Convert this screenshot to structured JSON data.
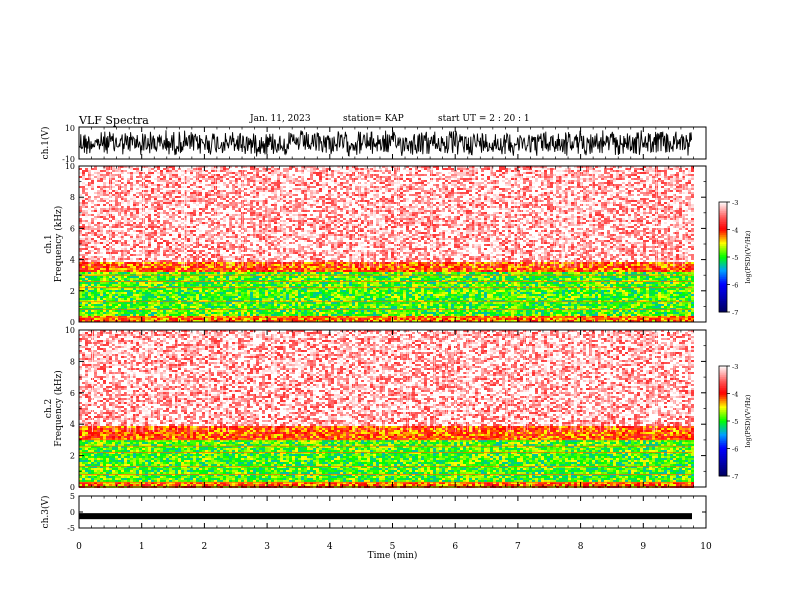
{
  "header": {
    "title": "VLF Spectra",
    "date": "Jan. 11, 2023",
    "station": "station= KAP",
    "start": "start  UT  =   2 : 20 : 1"
  },
  "chart_data": [
    {
      "type": "line",
      "panel": "ch1-waveform",
      "ylabel": "ch.1(V)",
      "ylim": [
        -10,
        10
      ],
      "yticks": [
        "10",
        "-10"
      ],
      "xlim": [
        0,
        10
      ],
      "description_values": {
        "amplitude_fill": "dense",
        "x_end": 9.8
      }
    },
    {
      "type": "heatmap",
      "panel": "ch1-spectrogram",
      "ylabel": "ch.1\nFrequency (kHz)",
      "ylim": [
        0,
        10
      ],
      "yticks": [
        "0",
        "2",
        "4",
        "6",
        "8",
        "10"
      ],
      "xlim": [
        0,
        9.8
      ],
      "bands": [
        {
          "from": 0,
          "to": 0.5,
          "level": -4.2
        },
        {
          "from": 0.5,
          "to": 3.3,
          "level": -4.9
        },
        {
          "from": 3.3,
          "to": 3.9,
          "level": -4.1
        },
        {
          "from": 3.9,
          "to": 10,
          "level": -3.2
        }
      ],
      "colorbar": {
        "label": "log(PSD)(V²/Hz)",
        "ticks": [
          "-3",
          "-4",
          "-5",
          "-6",
          "-7"
        ],
        "range": [
          -7,
          -3
        ]
      }
    },
    {
      "type": "heatmap",
      "panel": "ch2-spectrogram",
      "ylabel": "ch.2\nFrequency (kHz)",
      "ylim": [
        0,
        10
      ],
      "yticks": [
        "0",
        "2",
        "4",
        "6",
        "8",
        "10"
      ],
      "xlim": [
        0,
        9.8
      ],
      "bands": [
        {
          "from": 0,
          "to": 0.4,
          "level": -4.2
        },
        {
          "from": 0.4,
          "to": 3.0,
          "level": -4.9
        },
        {
          "from": 3.0,
          "to": 4.0,
          "level": -4.1
        },
        {
          "from": 4.0,
          "to": 10,
          "level": -3.2
        }
      ],
      "colorbar": {
        "label": "log(PSD)(V²/Hz)",
        "ticks": [
          "-3",
          "-4",
          "-5",
          "-6",
          "-7"
        ],
        "range": [
          -7,
          -3
        ]
      }
    },
    {
      "type": "line",
      "panel": "ch3-waveform",
      "ylabel": "ch.3(V)",
      "ylim": [
        -5,
        5
      ],
      "yticks": [
        "5",
        "0",
        "-5"
      ],
      "xlim": [
        0,
        10
      ],
      "xlabel": "Time (min)",
      "xticks": [
        "0",
        "1",
        "2",
        "3",
        "4",
        "5",
        "6",
        "7",
        "8",
        "9",
        "10"
      ],
      "level": -1.3
    }
  ],
  "colors": {
    "white": "#ffffff",
    "red": "#ff0000",
    "orange": "#ff8000",
    "yellow": "#ffff00",
    "green": "#00ff00",
    "blue": "#0000ff",
    "navy": "#000060"
  }
}
